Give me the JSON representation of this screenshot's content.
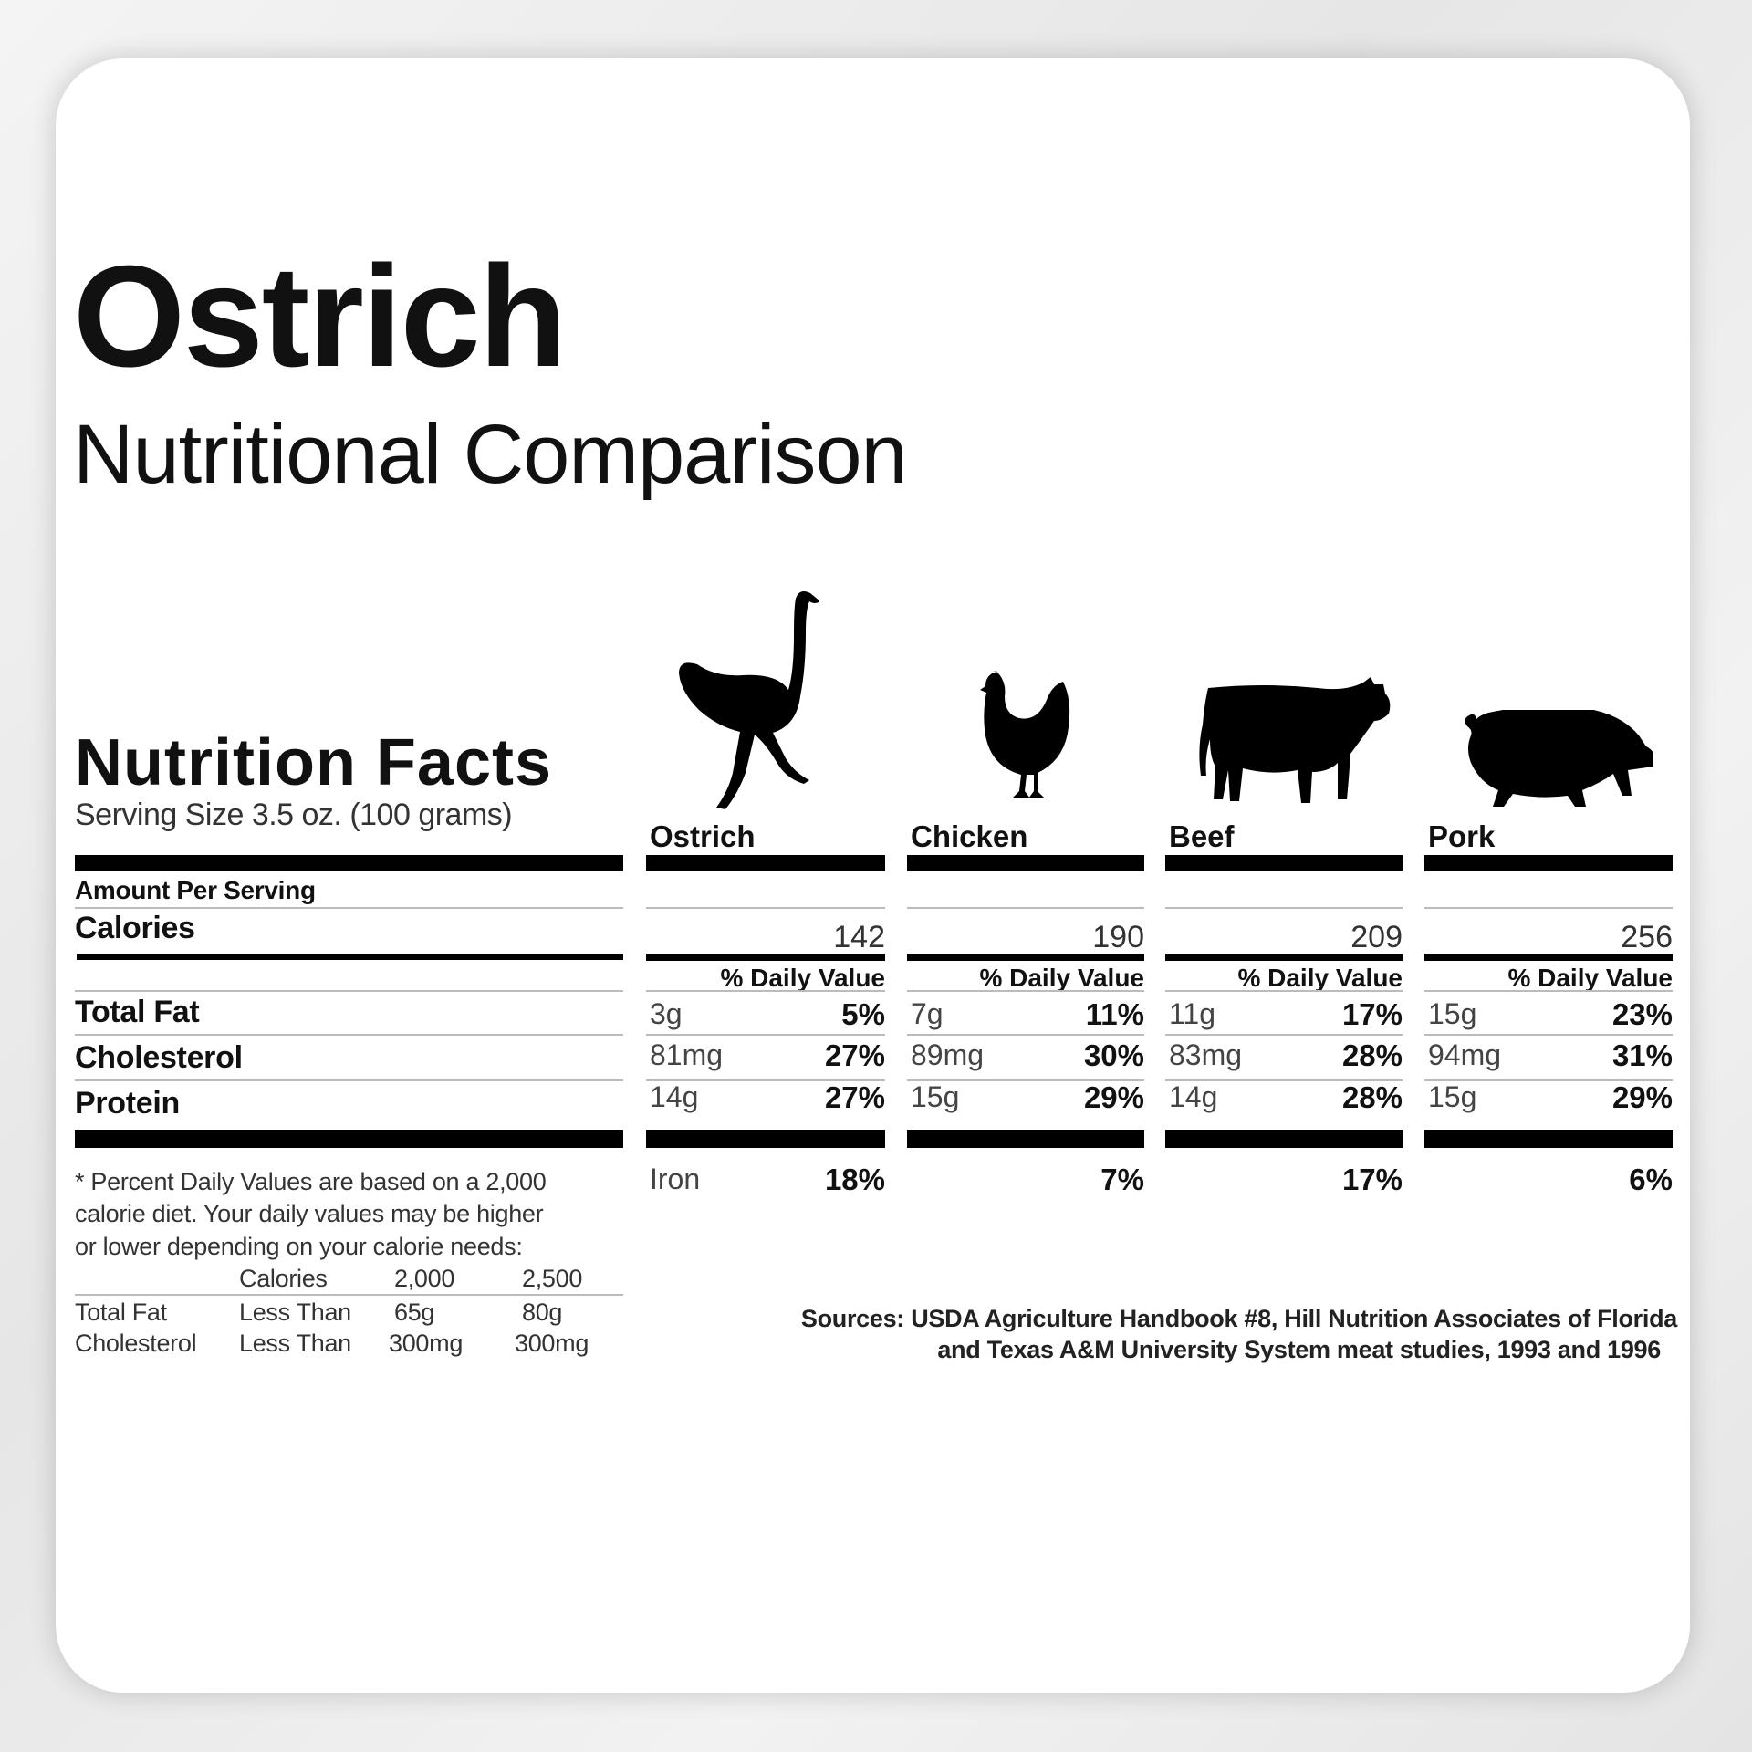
{
  "header": {
    "title": "Ostrich",
    "subtitle": "Nutritional Comparison"
  },
  "label": {
    "title": "Nutrition Facts",
    "serving": "Serving Size 3.5 oz. (100 grams)",
    "amount_per_serving": "Amount Per Serving",
    "rows": {
      "calories": "Calories",
      "total_fat": "Total Fat",
      "cholesterol": "Cholesterol",
      "protein": "Protein"
    },
    "footnote": [
      "* Percent Daily Values are based on a 2,000",
      "calorie diet. Your daily values may be higher",
      "or lower depending on your calorie needs:"
    ],
    "dv_table": {
      "header": [
        "Calories",
        "2,000",
        "2,500"
      ],
      "rows": [
        [
          "Total Fat",
          "Less Than",
          "65g",
          "80g"
        ],
        [
          "Cholesterol",
          "Less Than",
          "300mg",
          "300mg"
        ]
      ]
    }
  },
  "daily_value_label": "% Daily Value",
  "iron_label": "Iron",
  "columns": [
    {
      "name": "Ostrich",
      "icon": "ostrich-icon",
      "calories": "142",
      "fat": "3g",
      "fat_pct": "5%",
      "chol": "81mg",
      "chol_pct": "27%",
      "protein": "14g",
      "protein_pct": "27%",
      "iron_pct": "18%"
    },
    {
      "name": "Chicken",
      "icon": "chicken-icon",
      "calories": "190",
      "fat": "7g",
      "fat_pct": "11%",
      "chol": "89mg",
      "chol_pct": "30%",
      "protein": "15g",
      "protein_pct": "29%",
      "iron_pct": "7%"
    },
    {
      "name": "Beef",
      "icon": "cow-icon",
      "calories": "209",
      "fat": "11g",
      "fat_pct": "17%",
      "chol": "83mg",
      "chol_pct": "28%",
      "protein": "14g",
      "protein_pct": "28%",
      "iron_pct": "17%"
    },
    {
      "name": "Pork",
      "icon": "pig-icon",
      "calories": "256",
      "fat": "15g",
      "fat_pct": "23%",
      "chol": "94mg",
      "chol_pct": "31%",
      "protein": "15g",
      "protein_pct": "29%",
      "iron_pct": "6%"
    }
  ],
  "sources": [
    "Sources: USDA Agriculture Handbook #8, Hill Nutrition Associates of Florida",
    "and Texas A&M University System meat studies, 1993 and 1996"
  ]
}
